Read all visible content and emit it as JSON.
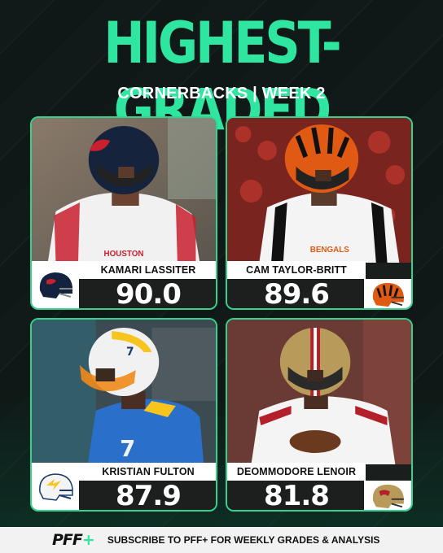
{
  "header": {
    "title": "HIGHEST-GRADED",
    "subtitle": "CORNERBACKS | WEEK 2"
  },
  "players": [
    {
      "name": "KAMARI LASSITER",
      "grade": "90.0",
      "team_icon": "texans-helmet-icon",
      "jersey_text": "HOUSTON"
    },
    {
      "name": "CAM TAYLOR-BRITT",
      "grade": "89.6",
      "team_icon": "bengals-helmet-icon",
      "jersey_text": "BENGALS"
    },
    {
      "name": "KRISTIAN FULTON",
      "grade": "87.9",
      "team_icon": "chargers-helmet-icon",
      "jersey_text": "7"
    },
    {
      "name": "DEOMMODORE LENOIR",
      "grade": "81.8",
      "team_icon": "49ers-helmet-icon",
      "jersey_text": ""
    }
  ],
  "footer": {
    "brand": "PFF",
    "brand_plus": "+",
    "text": "SUBSCRIBE TO PFF+ FOR WEEKLY GRADES & ANALYSIS"
  },
  "colors": {
    "accent": "#2fe6a0",
    "card_border": "#36d18f",
    "background": "#111b19"
  }
}
